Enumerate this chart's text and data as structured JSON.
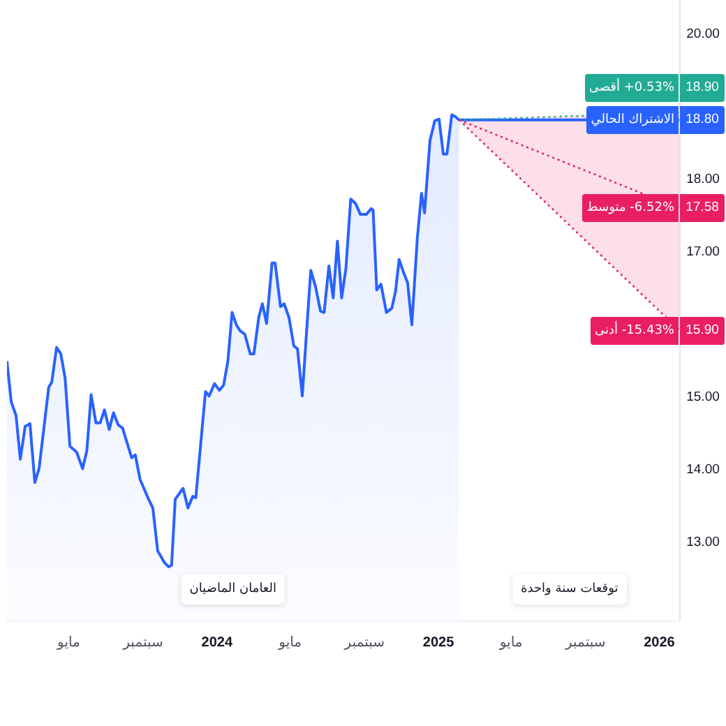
{
  "chart_data": {
    "type": "area",
    "x": [
      "2023-01-19",
      "2023-01-26",
      "2023-02-03",
      "2023-02-10",
      "2023-02-18",
      "2023-02-26",
      "2023-03-06",
      "2023-03-13",
      "2023-03-29",
      "2023-04-03",
      "2023-04-11",
      "2023-04-18",
      "2023-04-25",
      "2023-05-03",
      "2023-05-14",
      "2023-05-24",
      "2023-05-31",
      "2023-06-07",
      "2023-06-15",
      "2023-06-22",
      "2023-06-29",
      "2023-07-07",
      "2023-07-14",
      "2023-07-22",
      "2023-07-29",
      "2023-08-13",
      "2023-08-19",
      "2023-08-27",
      "2023-09-10",
      "2023-09-17",
      "2023-09-25",
      "2023-10-06",
      "2023-10-13",
      "2023-10-18",
      "2023-10-24",
      "2023-11-06",
      "2023-11-14",
      "2023-11-22",
      "2023-11-27",
      "2023-12-13",
      "2023-12-19",
      "2023-12-28",
      "2024-01-05",
      "2024-01-12",
      "2024-01-19",
      "2024-01-26",
      "2024-02-02",
      "2024-02-08",
      "2024-02-16",
      "2024-02-25",
      "2024-03-02",
      "2024-03-10",
      "2024-03-16",
      "2024-03-23",
      "2024-04-01",
      "2024-04-06",
      "2024-04-15",
      "2024-04-21",
      "2024-04-29",
      "2024-05-07",
      "2024-05-13",
      "2024-05-21",
      "2024-05-28",
      "2024-06-04",
      "2024-06-12",
      "2024-06-20",
      "2024-06-26",
      "2024-07-04",
      "2024-07-11",
      "2024-07-18",
      "2024-07-25",
      "2024-08-01",
      "2024-08-09",
      "2024-08-17",
      "2024-08-25",
      "2024-09-04",
      "2024-09-12",
      "2024-09-15",
      "2024-09-21",
      "2024-09-28",
      "2024-10-07",
      "2024-10-16",
      "2024-10-22",
      "2024-10-28",
      "2024-11-03",
      "2024-11-11",
      "2024-11-18",
      "2024-11-27",
      "2024-12-04",
      "2024-12-09",
      "2024-12-18",
      "2024-12-26",
      "2025-01-02",
      "2025-01-09",
      "2025-01-15",
      "2025-01-23",
      "2025-01-28",
      "2025-02-04"
    ],
    "series": [
      {
        "color": "#2962ff",
        "values": [
          15.48,
          14.92,
          14.73,
          14.13,
          14.58,
          14.62,
          13.81,
          14.0,
          15.12,
          15.19,
          15.67,
          15.58,
          15.25,
          14.31,
          14.23,
          14.0,
          14.25,
          15.02,
          14.63,
          14.63,
          14.81,
          14.54,
          14.77,
          14.6,
          14.56,
          14.15,
          14.19,
          13.85,
          13.58,
          13.46,
          12.87,
          12.71,
          12.65,
          12.67,
          13.58,
          13.73,
          13.46,
          13.62,
          13.6,
          15.06,
          15.0,
          15.17,
          15.08,
          15.15,
          15.48,
          16.15,
          15.98,
          15.9,
          15.85,
          15.58,
          15.58,
          16.08,
          16.27,
          16.0,
          16.83,
          16.83,
          16.23,
          16.27,
          16.08,
          15.69,
          15.65,
          15.0,
          15.88,
          16.73,
          16.5,
          16.17,
          16.15,
          16.79,
          16.35,
          17.13,
          16.35,
          16.75,
          17.71,
          17.65,
          17.5,
          17.5,
          17.58,
          17.56,
          16.46,
          16.54,
          16.15,
          16.21,
          16.44,
          16.88,
          16.73,
          16.56,
          15.98,
          17.17,
          17.79,
          17.52,
          18.52,
          18.79,
          18.81,
          18.33,
          18.33,
          18.87,
          18.85,
          18.8
        ]
      },
      {
        "type": "line",
        "name": "الاشتراك الحالي",
        "color": "#2962ff",
        "x": [
          "2025-02-04",
          "2026-02-04"
        ],
        "values": [
          18.8,
          18.8
        ],
        "value_labels": [
          null,
          "18.80"
        ]
      },
      {
        "type": "line",
        "name": "+0.53% أقصى",
        "color": "#22ab94",
        "line_style": "dotted",
        "x": [
          "2025-02-04",
          "2026-02-04"
        ],
        "values": [
          18.8,
          18.9
        ],
        "value_labels": [
          null,
          "18.90"
        ]
      },
      {
        "type": "line",
        "name": "-6.52% متوسط",
        "color": "#e91e63",
        "line_style": "dotted",
        "x": [
          "2025-02-04",
          "2026-02-04"
        ],
        "values": [
          18.8,
          17.58
        ],
        "lower": [
          18.8,
          15.9
        ],
        "upper": [
          18.8,
          18.9
        ],
        "value_labels": [
          null,
          "17.58"
        ]
      },
      {
        "type": "line",
        "name": "-15.43% أدنى",
        "color": "#e91e63",
        "line_style": "dotted",
        "x": [
          "2025-02-04",
          "2026-02-04"
        ],
        "values": [
          18.8,
          15.9
        ],
        "value_labels": [
          null,
          "15.90"
        ]
      }
    ],
    "xlim": [
      "2023-01-19",
      "2026-02-04"
    ],
    "xticks": [
      {
        "value": "2023-05",
        "label": "مايو"
      },
      {
        "value": "2023-09",
        "label": "سبتمبر"
      },
      "2024",
      {
        "value": "2024-05",
        "label": "مايو"
      },
      {
        "value": "2024-09",
        "label": "سبتمبر"
      },
      "2025",
      {
        "value": "2025-05",
        "label": "مايو"
      },
      {
        "value": "2025-09",
        "label": "سبتمبر"
      },
      "2026"
    ],
    "ylim": [
      11.9,
      20.45
    ],
    "yticks": [
      {
        "value": 13,
        "label": "13.00"
      },
      {
        "value": 14,
        "label": "14.00"
      },
      {
        "value": 15,
        "label": "15.00"
      },
      {
        "value": 17,
        "label": "17.00"
      },
      {
        "value": 18,
        "label": "18.00"
      },
      {
        "value": 20,
        "label": "20.00"
      }
    ],
    "legend": "right",
    "annotations": [
      "العامان الماضيان",
      "توقعات سنة واحدة"
    ]
  }
}
